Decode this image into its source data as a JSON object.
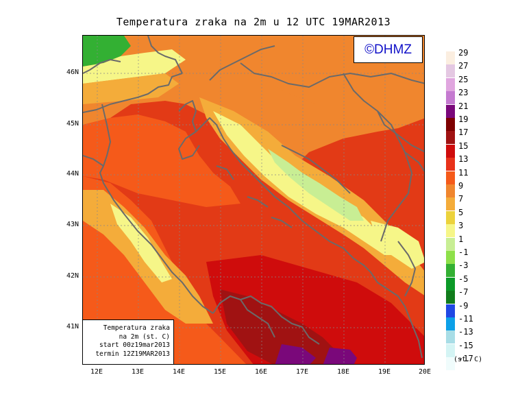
{
  "title": "Temperatura zraka na 2m u 12 UTC 19MAR2013",
  "copyright": "©DHMZ",
  "info_box": {
    "line1": "Temperatura zraka",
    "line2": "na 2m (st. C)",
    "line3": "start 00z19mar2013",
    "line4": "termin 12Z19MAR2013"
  },
  "lat_labels": [
    "46N",
    "45N",
    "44N",
    "43N",
    "42N",
    "41N"
  ],
  "lon_labels": [
    "12E",
    "13E",
    "14E",
    "15E",
    "16E",
    "17E",
    "18E",
    "19E",
    "20E"
  ],
  "legend": {
    "unit": "(st. C)",
    "labels": [
      "29",
      "27",
      "25",
      "23",
      "21",
      "19",
      "17",
      "15",
      "13",
      "11",
      "9",
      "7",
      "5",
      "3",
      "1",
      "-1",
      "-3",
      "-5",
      "-7",
      "-9",
      "-11",
      "-13",
      "-15",
      "-17"
    ],
    "colors": [
      "#fbeee0",
      "#e4c8e2",
      "#e0a6df",
      "#c57ad0",
      "#7a087a",
      "#7e0000",
      "#a01212",
      "#cf0c0c",
      "#e8321a",
      "#f55a1a",
      "#f0862e",
      "#f4ac3a",
      "#ecd23c",
      "#f6f688",
      "#c8ee94",
      "#8ee04a",
      "#33b033",
      "#0c9a28",
      "#117c1c",
      "#2048e4",
      "#0ca0e8",
      "#a8dde6",
      "#d4f4f4",
      "#f0fcfc"
    ]
  },
  "map_colors": {
    "sea_south": "#e23a16",
    "sea_deep": "#cf0c0c",
    "sea_north": "#f55a1a",
    "inland_warm": "#f0862e",
    "mountain_mid": "#f4ac3a",
    "mountain_high": "#f6f688",
    "mountain_peak": "#c8ee94",
    "alps_cold": "#33b033",
    "dark_red": "#a01212",
    "purple": "#7a087a",
    "coastline": "#6a6a6a",
    "grid": "#888888"
  }
}
